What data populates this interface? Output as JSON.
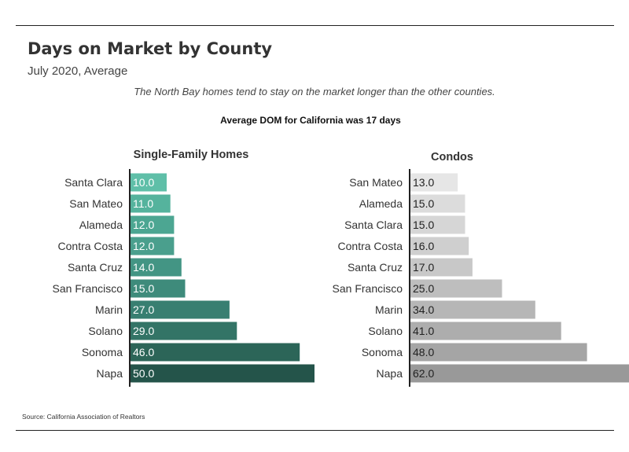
{
  "title": "Days on Market by County",
  "subtitle": "July 2020, Average",
  "annotation": "The North Bay homes tend to stay on the market longer than the other counties.",
  "california_note": "Average DOM for California was 17 days",
  "source": "Source:  California Association of Realtors",
  "chart_data": [
    {
      "type": "bar",
      "orientation": "horizontal",
      "title": "Single-Family Homes",
      "categories": [
        "Santa Clara",
        "San Mateo",
        "Alameda",
        "Contra Costa",
        "Santa Cruz",
        "San Francisco",
        "Marin",
        "Solano",
        "Sonoma",
        "Napa"
      ],
      "values": [
        10.0,
        11.0,
        12.0,
        12.0,
        14.0,
        15.0,
        27.0,
        29.0,
        46.0,
        50.0
      ],
      "value_labels": [
        "10.0",
        "11.0",
        "12.0",
        "12.0",
        "14.0",
        "15.0",
        "27.0",
        "29.0",
        "46.0",
        "50.0"
      ],
      "colors": [
        "#5fbfa8",
        "#55b39d",
        "#4ca692",
        "#4a9f8d",
        "#439584",
        "#3e8b7b",
        "#387f71",
        "#337466",
        "#2c6558",
        "#24544a"
      ],
      "xlabel": "",
      "ylabel": "",
      "grid": false,
      "legend": false
    },
    {
      "type": "bar",
      "orientation": "horizontal",
      "title": "Condos",
      "categories": [
        "San Mateo",
        "Alameda",
        "Santa Clara",
        "Contra Costa",
        "Santa Cruz",
        "San Francisco",
        "Marin",
        "Solano",
        "Sonoma",
        "Napa"
      ],
      "values": [
        13.0,
        15.0,
        15.0,
        16.0,
        17.0,
        25.0,
        34.0,
        41.0,
        48.0,
        62.0
      ],
      "value_labels": [
        "13.0",
        "15.0",
        "15.0",
        "16.0",
        "17.0",
        "25.0",
        "34.0",
        "41.0",
        "48.0",
        "62.0"
      ],
      "colors": [
        "#e6e6e6",
        "#dcdcdc",
        "#d6d6d6",
        "#cfcfcf",
        "#c8c8c8",
        "#bebebe",
        "#b6b6b6",
        "#adadad",
        "#a5a5a5",
        "#999999"
      ],
      "xlabel": "",
      "ylabel": "",
      "grid": false,
      "legend": false
    }
  ]
}
